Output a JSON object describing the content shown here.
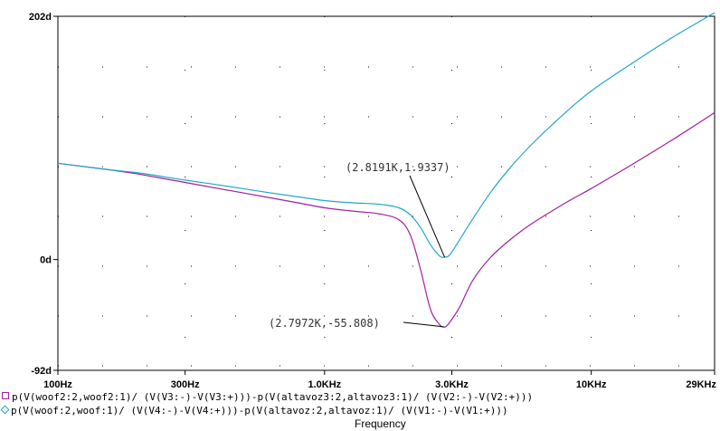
{
  "chart_data": {
    "type": "line",
    "xscale": "log",
    "xlim": [
      100,
      29000
    ],
    "ylim": [
      -92,
      202
    ],
    "xticks": [
      {
        "value": 100,
        "label": "100Hz"
      },
      {
        "value": 300,
        "label": "300Hz"
      },
      {
        "value": 1000,
        "label": "1.0KHz"
      },
      {
        "value": 3000,
        "label": "3.0KHz"
      },
      {
        "value": 10000,
        "label": "10KHz"
      },
      {
        "value": 29000,
        "label": "29KHz"
      }
    ],
    "yticks": [
      {
        "value": 202,
        "label": "202d"
      },
      {
        "value": 0,
        "label": "0d"
      },
      {
        "value": -92,
        "label": "-92d"
      }
    ],
    "xlabel": "Frequency",
    "series": [
      {
        "name": "p(V(woof2:2,woof2:1)/ (V(V3:-)-V(V3:+)))-p(V(altavoz3:2,altavoz3:1)/ (V(V2:-)-V(V2:+)))",
        "color": "#a020a0",
        "marker": "square",
        "x": [
          100,
          150,
          200,
          300,
          400,
          600,
          800,
          1000,
          1300,
          1600,
          1900,
          2100,
          2300,
          2500,
          2700,
          2797,
          2900,
          3200,
          3600,
          4200,
          5000,
          6000,
          8000,
          10000,
          14000,
          20000,
          29000
        ],
        "y": [
          80,
          75,
          71,
          64,
          59,
          52,
          47,
          43,
          40,
          38,
          33,
          20,
          -10,
          -42,
          -54,
          -56,
          -54,
          -40,
          -17,
          2,
          17,
          30,
          47,
          59,
          78,
          99,
          122
        ]
      },
      {
        "name": "p(V(woof:2,woof:1)/ (V(V4:-)-V(V4:+)))-p(V(altavoz:2,altavoz:1)/ (V(V1:-)-V(V1:+)))",
        "color": "#20a8c8",
        "marker": "diamond",
        "x": [
          100,
          150,
          200,
          300,
          400,
          600,
          800,
          1000,
          1300,
          1600,
          1900,
          2100,
          2300,
          2500,
          2700,
          2819,
          2950,
          3200,
          3600,
          4200,
          5000,
          6000,
          8000,
          10000,
          14000,
          20000,
          29000
        ],
        "y": [
          80,
          75,
          72,
          66,
          62,
          56,
          52,
          49,
          47,
          46,
          43,
          37,
          26,
          12,
          3,
          2,
          4,
          16,
          34,
          56,
          77,
          96,
          122,
          140,
          162,
          184,
          205
        ]
      }
    ],
    "annotations": [
      {
        "label": "(2.8191K,1.9337)",
        "x": 2819.1,
        "y": 1.9337
      },
      {
        "label": "(2.7972K,-55.808)",
        "x": 2797.2,
        "y": -55.808
      }
    ]
  },
  "colors": {
    "axis": "#000000",
    "grid_dot": "#000000"
  }
}
